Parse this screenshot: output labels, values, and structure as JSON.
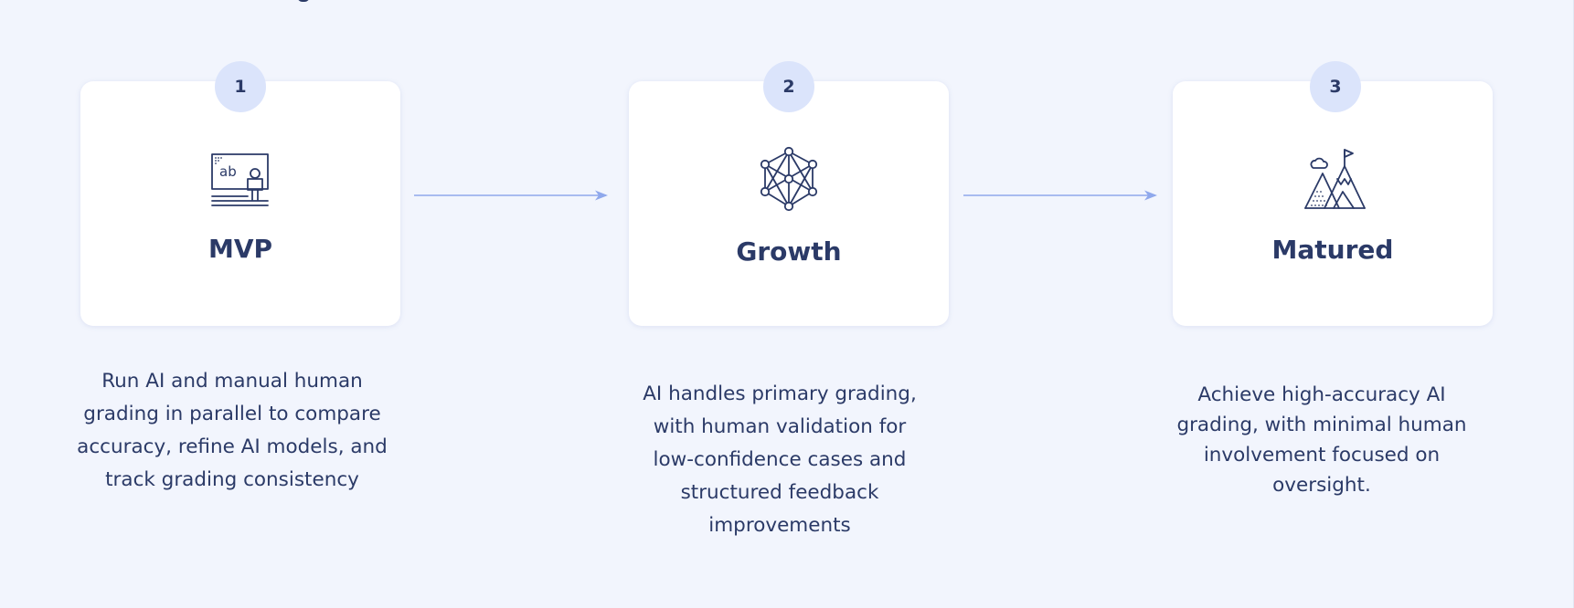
{
  "stages": [
    {
      "number": "1",
      "icon": "whiteboard-teacher-icon",
      "title": "MVP",
      "description": "Run AI and manual human grading in parallel to compare accuracy, refine AI models, and track grading consistency"
    },
    {
      "number": "2",
      "icon": "network-graph-icon",
      "title": "Growth",
      "description": "AI handles primary grading, with human validation for low-confidence cases and structured feedback improvements"
    },
    {
      "number": "3",
      "icon": "mountain-flag-icon",
      "title": "Matured",
      "description": "Achieve high-accuracy AI grading, with minimal human involvement focused on oversight."
    }
  ],
  "colors": {
    "background": "#f2f5fd",
    "card": "#ffffff",
    "badge": "#dbe4fb",
    "text": "#2b3a67",
    "arrow": "#8fa8ec"
  }
}
